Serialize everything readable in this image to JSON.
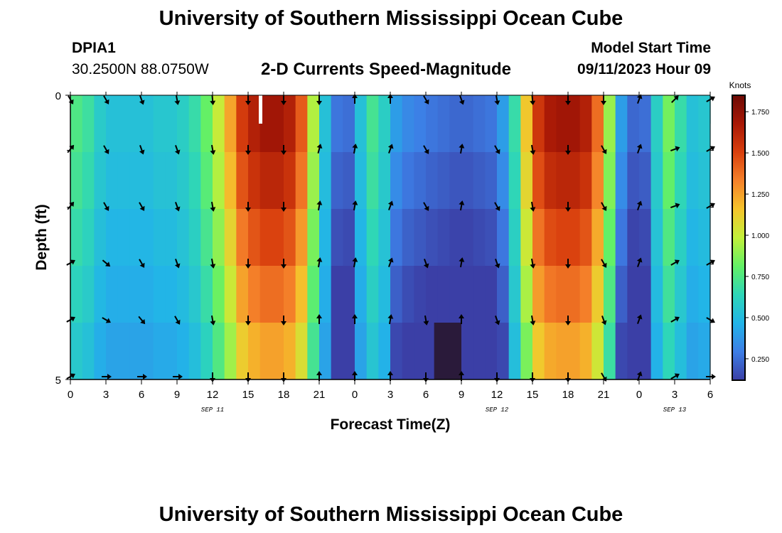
{
  "header": {
    "title": "University of Southern Mississippi Ocean Cube",
    "station_id": "DPIA1",
    "station_coords": "30.2500N  88.0750W",
    "subtitle": "2-D Currents Speed-Magnitude",
    "model_start_label": "Model Start Time",
    "model_start_time": "09/11/2023 Hour 09"
  },
  "footer": {
    "title": "University of Southern Mississippi Ocean Cube"
  },
  "chart_data": {
    "type": "heatmap",
    "title": "2-D Currents Speed-Magnitude",
    "xlabel": "Forecast Time(Z)",
    "ylabel": "Depth (ft)",
    "x_unit": "hours since SEP 11 00Z",
    "xlim": [
      0,
      54
    ],
    "ylim": [
      0,
      5
    ],
    "xtick_values": [
      0,
      3,
      6,
      9,
      12,
      15,
      18,
      21,
      24,
      27,
      30,
      33,
      36,
      39,
      42,
      45,
      48,
      51,
      54
    ],
    "xtick_labels": [
      "0",
      "3",
      "6",
      "9",
      "12",
      "15",
      "18",
      "21",
      "0",
      "3",
      "6",
      "9",
      "12",
      "15",
      "18",
      "21",
      "0",
      "3",
      "6"
    ],
    "ytick_values": [
      0,
      5
    ],
    "ytick_labels": [
      "0",
      "5"
    ],
    "date_labels": [
      {
        "text": "SEP 11",
        "hour": 12
      },
      {
        "text": "SEP 12",
        "hour": 36
      },
      {
        "text": "SEP 13",
        "hour": 51
      }
    ],
    "colorbar": {
      "label": "Knots",
      "min": 0.12,
      "max": 1.85,
      "ticks": [
        0.25,
        0.5,
        0.75,
        1.0,
        1.25,
        1.5,
        1.75
      ],
      "tick_labels": [
        "0.250",
        "0.500",
        "0.750",
        "1.000",
        "1.250",
        "1.500",
        "1.750"
      ],
      "colors": [
        "#3b3fa6",
        "#3d7ee6",
        "#22b4e8",
        "#2ed6b8",
        "#63f066",
        "#c2f03a",
        "#f5c42c",
        "#f5812a",
        "#d9400e",
        "#a81806",
        "#6d0a05"
      ]
    },
    "depth_rows": [
      0.0,
      0.5,
      1.5,
      2.5,
      3.5,
      4.5
    ],
    "speed_columns_hours": [
      0,
      1,
      2,
      3,
      4,
      5,
      6,
      7,
      8,
      9,
      10,
      11,
      12,
      13,
      14,
      15,
      16,
      17,
      18,
      19,
      20,
      21,
      22,
      23,
      24,
      25,
      26,
      27,
      28,
      29,
      30,
      31,
      32,
      33,
      34,
      35,
      36,
      37,
      38,
      39,
      40,
      41,
      42,
      43,
      44,
      45,
      46,
      47,
      48,
      49,
      50,
      51,
      52,
      53
    ],
    "speed_profile_surface": [
      0.78,
      0.72,
      0.6,
      0.55,
      0.55,
      0.55,
      0.55,
      0.58,
      0.58,
      0.62,
      0.7,
      0.85,
      1.05,
      1.3,
      1.6,
      1.72,
      1.78,
      1.78,
      1.72,
      1.5,
      1.0,
      0.55,
      0.32,
      0.3,
      0.55,
      0.75,
      0.62,
      0.45,
      0.38,
      0.35,
      0.32,
      0.3,
      0.28,
      0.28,
      0.3,
      0.32,
      0.45,
      0.7,
      1.2,
      1.62,
      1.75,
      1.78,
      1.78,
      1.72,
      1.45,
      0.95,
      0.45,
      0.28,
      0.3,
      0.62,
      0.88,
      0.7,
      0.55,
      0.58
    ],
    "depth_speed_factors": [
      1.0,
      0.95,
      0.9,
      0.83,
      0.76,
      0.68
    ],
    "vector_hours": [
      0,
      3,
      6,
      9,
      12,
      15,
      18,
      21,
      24,
      27,
      30,
      33,
      36,
      39,
      42,
      45,
      48,
      51,
      54
    ],
    "vector_directions_deg": [
      [
        150,
        150,
        160,
        170,
        175,
        180,
        180,
        180,
        0,
        0,
        150,
        160,
        170,
        175,
        180,
        180,
        20,
        45,
        60
      ],
      [
        40,
        150,
        160,
        160,
        170,
        180,
        180,
        15,
        10,
        20,
        150,
        10,
        150,
        170,
        180,
        150,
        20,
        70,
        60
      ],
      [
        40,
        150,
        150,
        160,
        170,
        180,
        180,
        10,
        10,
        20,
        150,
        10,
        150,
        170,
        180,
        150,
        20,
        70,
        60
      ],
      [
        60,
        130,
        150,
        160,
        170,
        180,
        180,
        10,
        10,
        20,
        160,
        10,
        160,
        170,
        180,
        150,
        20,
        60,
        60
      ],
      [
        60,
        120,
        140,
        150,
        170,
        180,
        180,
        0,
        0,
        10,
        170,
        0,
        160,
        170,
        180,
        160,
        20,
        60,
        120
      ],
      [
        60,
        90,
        90,
        90,
        180,
        180,
        180,
        0,
        0,
        0,
        180,
        0,
        180,
        180,
        180,
        150,
        20,
        60,
        90
      ]
    ],
    "anomalies": [
      {
        "hour_start": 15.9,
        "hour_end": 16.2,
        "depth_start": 0,
        "depth_end": 0.5,
        "color": "#ffffff"
      },
      {
        "hour_start": 30.7,
        "hour_end": 33.0,
        "depth_start": 4.0,
        "depth_end": 5.0,
        "color": "#2a1a3a"
      }
    ]
  }
}
